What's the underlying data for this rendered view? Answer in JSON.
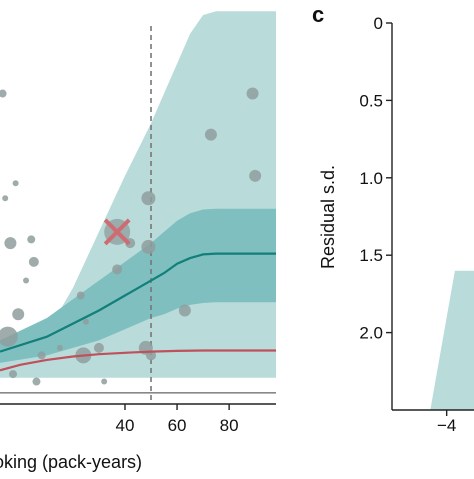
{
  "colors": {
    "outer_band": "#b9dcdb",
    "inner_band": "#7fbfbf",
    "teal_line": "#137f7a",
    "red_line": "#c0505b",
    "points": "#8f9e9e",
    "cross": "#cf6b72",
    "axis": "#222222",
    "baseline": "#888888",
    "dashed_line": "#777777",
    "right_band": "#b9dcdb"
  },
  "chart_data": [
    {
      "panel": "b",
      "type": "scatter",
      "panel_label": "",
      "xlabel": "oking (pack-years)",
      "ylabel": "",
      "xlim": [
        -8,
        98
      ],
      "ylim": [
        -0.3,
        10.5
      ],
      "xticks": [
        40,
        60,
        80
      ],
      "vline_x": 50,
      "baseline_y": 0,
      "outer_band": {
        "x": [
          -8,
          10,
          20,
          30,
          40,
          50,
          55,
          60,
          65,
          70,
          75,
          80,
          90,
          98
        ],
        "lower": [
          0.4,
          0.4,
          0.4,
          0.4,
          0.4,
          0.4,
          0.4,
          0.4,
          0.4,
          0.4,
          0.4,
          0.4,
          0.4,
          0.4
        ],
        "upper": [
          0.8,
          1.6,
          2.8,
          4.3,
          5.8,
          7.2,
          8.0,
          8.8,
          9.6,
          10.1,
          10.2,
          10.2,
          10.2,
          10.2
        ]
      },
      "inner_band": {
        "x": [
          -8,
          10,
          20,
          30,
          40,
          50,
          55,
          60,
          65,
          70,
          75,
          80,
          90,
          98
        ],
        "lower": [
          0.8,
          1.0,
          1.2,
          1.4,
          1.7,
          2.0,
          2.1,
          2.25,
          2.35,
          2.4,
          2.42,
          2.42,
          2.42,
          2.42
        ],
        "upper": [
          1.4,
          2.0,
          2.5,
          3.0,
          3.5,
          4.0,
          4.3,
          4.6,
          4.8,
          4.9,
          4.92,
          4.92,
          4.92,
          4.92
        ]
      },
      "series": [
        {
          "x": [
            -8,
            10,
            20,
            30,
            40,
            50,
            55,
            60,
            65,
            70,
            75,
            80,
            90,
            98
          ],
          "y": [
            1.1,
            1.5,
            1.85,
            2.2,
            2.6,
            3.0,
            3.2,
            3.45,
            3.6,
            3.7,
            3.72,
            3.72,
            3.72,
            3.72
          ]
        },
        {
          "x": [
            -8,
            0,
            10,
            20,
            30,
            40,
            50,
            60,
            70,
            80,
            90,
            98
          ],
          "y": [
            0.6,
            0.75,
            0.88,
            0.97,
            1.03,
            1.07,
            1.1,
            1.12,
            1.13,
            1.13,
            1.13,
            1.13
          ]
        }
      ],
      "points": {
        "x": [
          -7,
          -6,
          -4,
          -5,
          -3,
          -2,
          -1,
          2,
          4,
          5,
          6,
          8,
          15,
          23,
          24,
          25,
          30,
          32,
          37,
          42,
          48,
          49,
          49,
          50,
          63,
          73,
          89,
          90
        ],
        "y": [
          8.0,
          5.2,
          4.0,
          1.5,
          0.5,
          5.6,
          2.1,
          3.0,
          4.1,
          3.5,
          0.3,
          1.0,
          1.2,
          2.6,
          1.0,
          1.9,
          1.2,
          0.3,
          3.3,
          4.0,
          1.2,
          5.2,
          3.9,
          1.0,
          2.2,
          6.9,
          8.0,
          5.8
        ],
        "size": [
          4,
          3,
          6,
          10,
          4,
          3,
          6,
          3,
          4,
          5,
          4,
          4,
          3,
          4,
          8,
          3,
          5,
          3,
          5,
          5,
          7,
          7,
          7,
          5,
          6,
          6,
          6,
          6
        ]
      },
      "cross_marker": {
        "x": 37,
        "y": 4.3
      }
    },
    {
      "panel": "c",
      "type": "area",
      "panel_label": "c",
      "xlabel": "",
      "ylabel": "Residual s.d.",
      "xlim": [
        -6,
        -3
      ],
      "ylim": [
        0,
        2.5
      ],
      "y_inverted": true,
      "yticks": [
        0,
        0.5,
        1.0,
        1.5,
        2.0
      ],
      "ytick_labels": [
        "0",
        "0.5",
        "1.0",
        "1.5",
        "2.0"
      ],
      "xticks": [
        -4
      ],
      "xtick_labels": [
        "−4"
      ],
      "band": {
        "x": [
          -4.6,
          -3.7
        ],
        "y": [
          2.5,
          1.6
        ]
      }
    }
  ]
}
